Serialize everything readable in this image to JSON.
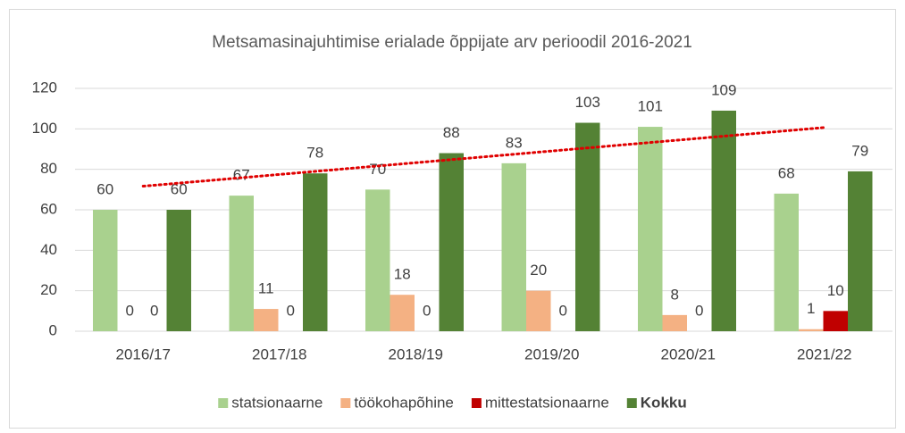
{
  "chart_data": {
    "type": "bar",
    "title": "Metsamasinajuhtimise erialade õppijate arv perioodil 2016-2021",
    "categories": [
      "2016/17",
      "2017/18",
      "2018/19",
      "2019/20",
      "2020/21",
      "2021/22"
    ],
    "series": [
      {
        "name": "statsionaarne",
        "color": "#a9d18e",
        "values": [
          60,
          67,
          70,
          83,
          101,
          68
        ]
      },
      {
        "name": "töökohapõhine",
        "color": "#f4b183",
        "values": [
          0,
          11,
          18,
          20,
          8,
          1
        ]
      },
      {
        "name": "mittestatsionaarne",
        "color": "#c00000",
        "values": [
          0,
          0,
          0,
          0,
          0,
          10
        ]
      },
      {
        "name": "Kokku",
        "color": "#548235",
        "values": [
          60,
          78,
          88,
          103,
          109,
          79
        ],
        "bold": true
      }
    ],
    "ylim": [
      0,
      120
    ],
    "yticks": [
      0,
      20,
      40,
      60,
      80,
      100,
      120
    ],
    "grid": true,
    "legend": "bottom",
    "trendline": {
      "series": 3,
      "type": "linear",
      "color": "#e00000"
    }
  }
}
